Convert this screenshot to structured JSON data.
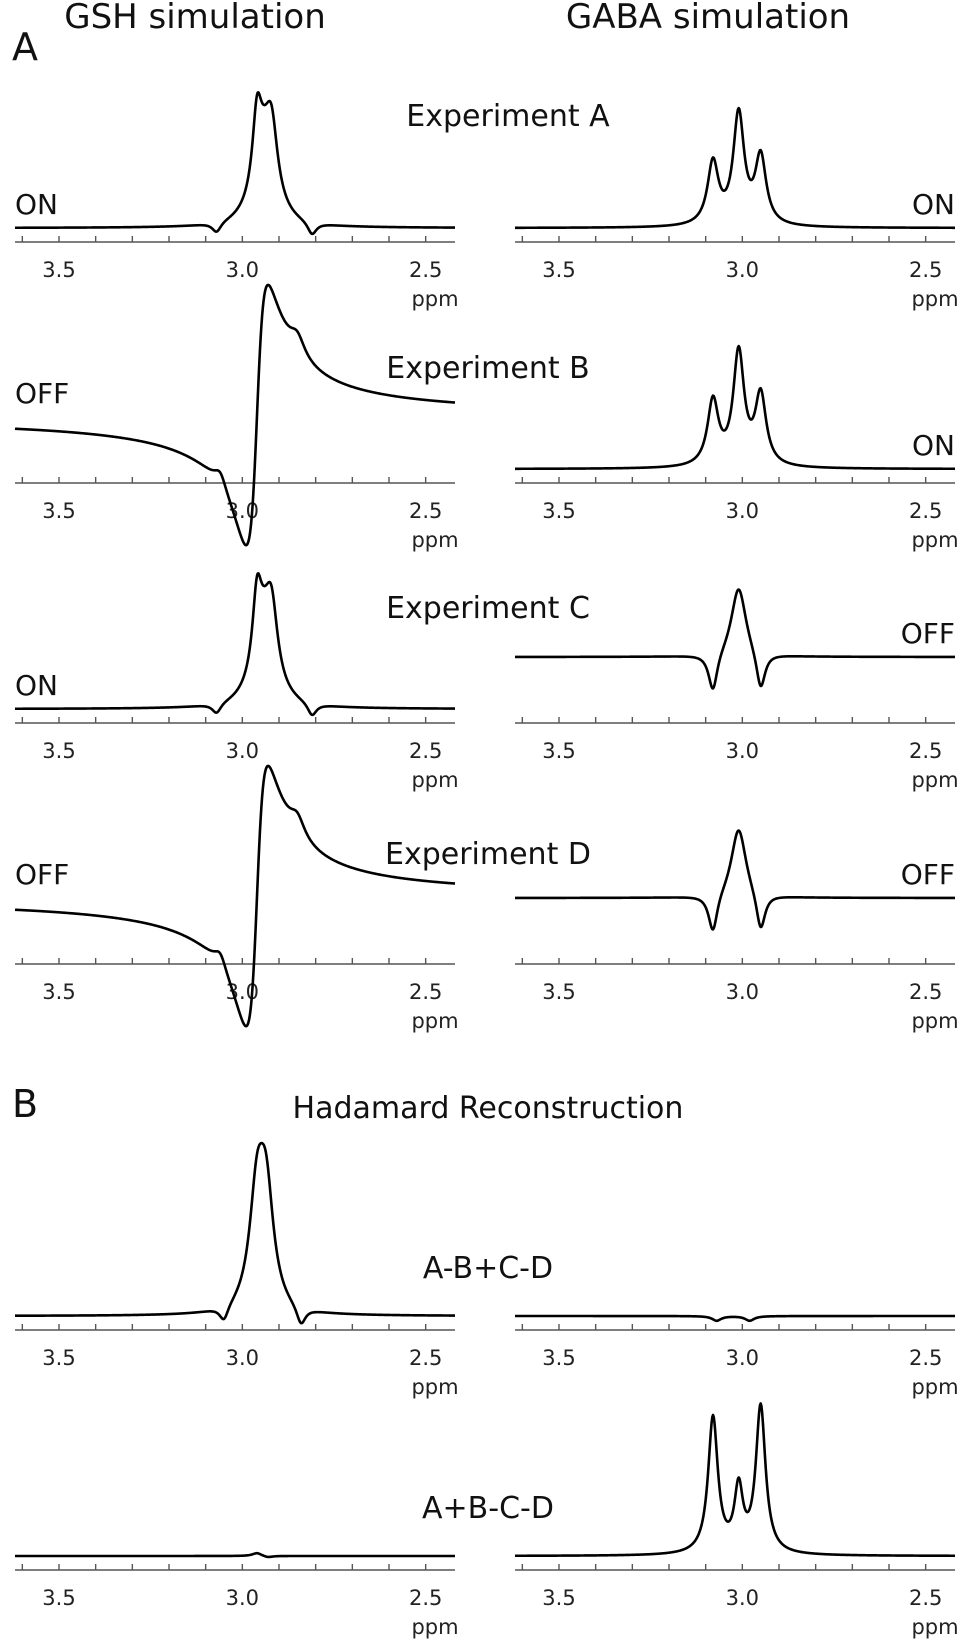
{
  "column_titles": [
    "GSH simulation",
    "GABA simulation"
  ],
  "panel_letters": [
    "A",
    "B"
  ],
  "section_title": "Hadamard Reconstruction",
  "chart_data": {
    "type": "line",
    "x_unit": "ppm",
    "xlim": [
      3.62,
      2.42
    ],
    "x_reversed": true,
    "xticks": [
      3.5,
      3.0,
      2.5
    ],
    "xtick_labels": [
      "3.5",
      "3.0",
      "2.5"
    ],
    "rows": [
      {
        "label": "Experiment A",
        "panels": [
          {
            "simulation": "GSH",
            "state": "ON",
            "state_side": "left",
            "baseline": 0.0,
            "peaks": [
              {
                "center": 2.96,
                "width": 0.015,
                "amp": 0.55,
                "kind": "abs"
              },
              {
                "center": 2.92,
                "width": 0.02,
                "amp": 0.5,
                "kind": "abs"
              },
              {
                "center": 2.94,
                "width": 0.035,
                "amp": 0.5,
                "kind": "abs"
              },
              {
                "center": 3.07,
                "width": 0.015,
                "amp": -0.08,
                "kind": "abs"
              },
              {
                "center": 2.81,
                "width": 0.015,
                "amp": -0.1,
                "kind": "abs"
              }
            ]
          },
          {
            "simulation": "GABA",
            "state": "ON",
            "state_side": "right",
            "baseline": 0.0,
            "peaks": [
              {
                "center": 3.08,
                "width": 0.018,
                "amp": 0.48,
                "kind": "abs"
              },
              {
                "center": 3.01,
                "width": 0.018,
                "amp": 0.85,
                "kind": "abs"
              },
              {
                "center": 2.95,
                "width": 0.018,
                "amp": 0.52,
                "kind": "abs"
              }
            ]
          }
        ]
      },
      {
        "label": "Experiment B",
        "panels": [
          {
            "simulation": "GSH",
            "state": "OFF",
            "state_side": "left",
            "baseline": 0.45,
            "peaks": [
              {
                "center": 2.96,
                "width": 0.03,
                "amp": -1.0,
                "kind": "disp"
              },
              {
                "center": 3.06,
                "width": 0.02,
                "amp": 0.12,
                "kind": "abs"
              },
              {
                "center": 2.85,
                "width": 0.025,
                "amp": 0.15,
                "kind": "abs"
              }
            ]
          },
          {
            "simulation": "GABA",
            "state": "ON",
            "state_side": "right",
            "baseline": 0.0,
            "peaks": [
              {
                "center": 3.08,
                "width": 0.018,
                "amp": 0.5,
                "kind": "abs"
              },
              {
                "center": 3.01,
                "width": 0.018,
                "amp": 0.87,
                "kind": "abs"
              },
              {
                "center": 2.95,
                "width": 0.018,
                "amp": 0.54,
                "kind": "abs"
              }
            ]
          }
        ]
      },
      {
        "label": "Experiment C",
        "panels": [
          {
            "simulation": "GSH",
            "state": "ON",
            "state_side": "left",
            "baseline": 0.0,
            "peaks": [
              {
                "center": 2.96,
                "width": 0.015,
                "amp": 0.55,
                "kind": "abs"
              },
              {
                "center": 2.92,
                "width": 0.02,
                "amp": 0.5,
                "kind": "abs"
              },
              {
                "center": 2.94,
                "width": 0.035,
                "amp": 0.5,
                "kind": "abs"
              },
              {
                "center": 3.07,
                "width": 0.015,
                "amp": -0.08,
                "kind": "abs"
              },
              {
                "center": 2.81,
                "width": 0.015,
                "amp": -0.1,
                "kind": "abs"
              }
            ]
          },
          {
            "simulation": "GABA",
            "state": "OFF",
            "state_side": "right",
            "baseline": 0.45,
            "peaks": [
              {
                "center": 3.01,
                "width": 0.025,
                "amp": 0.55,
                "kind": "abs"
              },
              {
                "center": 3.08,
                "width": 0.015,
                "amp": -0.3,
                "kind": "abs"
              },
              {
                "center": 2.95,
                "width": 0.015,
                "amp": -0.3,
                "kind": "abs"
              }
            ]
          }
        ]
      },
      {
        "label": "Experiment D",
        "panels": [
          {
            "simulation": "GSH",
            "state": "OFF",
            "state_side": "left",
            "baseline": 0.45,
            "peaks": [
              {
                "center": 2.96,
                "width": 0.03,
                "amp": -1.0,
                "kind": "disp"
              },
              {
                "center": 3.06,
                "width": 0.02,
                "amp": 0.12,
                "kind": "abs"
              },
              {
                "center": 2.85,
                "width": 0.025,
                "amp": 0.15,
                "kind": "abs"
              }
            ]
          },
          {
            "simulation": "GABA",
            "state": "OFF",
            "state_side": "right",
            "baseline": 0.45,
            "peaks": [
              {
                "center": 3.01,
                "width": 0.025,
                "amp": 0.55,
                "kind": "abs"
              },
              {
                "center": 3.08,
                "width": 0.015,
                "amp": -0.3,
                "kind": "abs"
              },
              {
                "center": 2.95,
                "width": 0.015,
                "amp": -0.3,
                "kind": "abs"
              }
            ]
          }
        ]
      },
      {
        "label": "A-B+C-D",
        "panels": [
          {
            "simulation": "GSH",
            "state": "",
            "state_side": "left",
            "baseline": 0.0,
            "peaks": [
              {
                "center": 2.96,
                "width": 0.025,
                "amp": 0.7,
                "kind": "abs"
              },
              {
                "center": 2.935,
                "width": 0.025,
                "amp": 0.7,
                "kind": "abs"
              },
              {
                "center": 3.05,
                "width": 0.015,
                "amp": -0.1,
                "kind": "abs"
              },
              {
                "center": 2.84,
                "width": 0.015,
                "amp": -0.12,
                "kind": "abs"
              }
            ]
          },
          {
            "simulation": "GABA",
            "state": "",
            "state_side": "right",
            "baseline": 0.0,
            "peaks": [
              {
                "center": 3.07,
                "width": 0.015,
                "amp": -0.03,
                "kind": "abs"
              },
              {
                "center": 2.98,
                "width": 0.015,
                "amp": -0.03,
                "kind": "abs"
              }
            ]
          }
        ]
      },
      {
        "label": "A+B-C-D",
        "panels": [
          {
            "simulation": "GSH",
            "state": "",
            "state_side": "left",
            "baseline": 0.0,
            "peaks": [
              {
                "center": 2.96,
                "width": 0.015,
                "amp": 0.02,
                "kind": "abs"
              },
              {
                "center": 2.93,
                "width": 0.015,
                "amp": -0.01,
                "kind": "abs"
              }
            ]
          },
          {
            "simulation": "GABA",
            "state": "",
            "state_side": "right",
            "baseline": 0.0,
            "peaks": [
              {
                "center": 3.08,
                "width": 0.016,
                "amp": 0.88,
                "kind": "abs"
              },
              {
                "center": 3.01,
                "width": 0.014,
                "amp": 0.4,
                "kind": "abs"
              },
              {
                "center": 2.95,
                "width": 0.016,
                "amp": 0.95,
                "kind": "abs"
              }
            ]
          }
        ]
      }
    ]
  }
}
